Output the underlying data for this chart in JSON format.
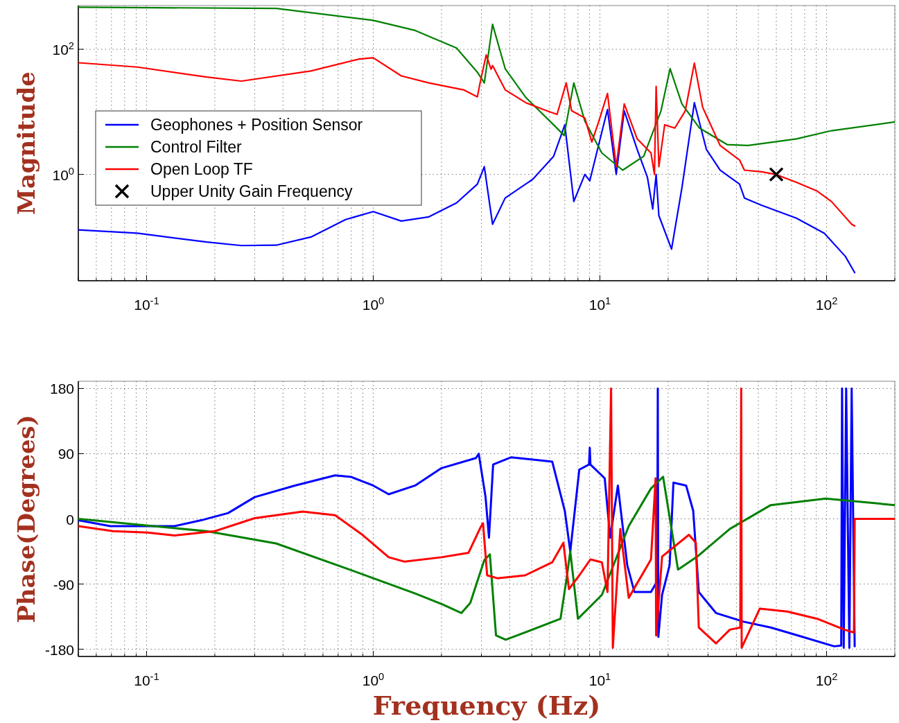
{
  "chart_data": [
    {
      "type": "line",
      "ylabel": "Magnitude",
      "log": "xy",
      "grid": true,
      "legend": "left",
      "line_style": "solid",
      "xlim": [
        0.05,
        200
      ],
      "ylim": [
        0.02,
        500
      ],
      "xticks": [
        {
          "value": 0.05,
          "label": null
        },
        {
          "value": 0.06,
          "label": null
        },
        {
          "value": 0.07,
          "label": null
        },
        {
          "value": 0.08,
          "label": null
        },
        {
          "value": 0.09,
          "label": null
        },
        {
          "value": 0.1,
          "label": "10$^{-1}$"
        },
        {
          "value": 0.2,
          "label": null
        },
        {
          "value": 0.3,
          "label": null
        },
        {
          "value": 0.4,
          "label": null
        },
        {
          "value": 0.5,
          "label": null
        },
        {
          "value": 0.6,
          "label": null
        },
        {
          "value": 0.7,
          "label": null
        },
        {
          "value": 0.8,
          "label": null
        },
        {
          "value": 0.9,
          "label": null
        },
        {
          "value": 1,
          "label": "10$^{0}$"
        },
        {
          "value": 2,
          "label": null
        },
        {
          "value": 3,
          "label": null
        },
        {
          "value": 4,
          "label": null
        },
        {
          "value": 5,
          "label": null
        },
        {
          "value": 6,
          "label": null
        },
        {
          "value": 7,
          "label": null
        },
        {
          "value": 8,
          "label": null
        },
        {
          "value": 9,
          "label": null
        },
        {
          "value": 10,
          "label": "10$^{1}$"
        },
        {
          "value": 20,
          "label": null
        },
        {
          "value": 30,
          "label": null
        },
        {
          "value": 40,
          "label": null
        },
        {
          "value": 50,
          "label": null
        },
        {
          "value": 60,
          "label": null
        },
        {
          "value": 70,
          "label": null
        },
        {
          "value": 80,
          "label": null
        },
        {
          "value": 90,
          "label": null
        },
        {
          "value": 100,
          "label": "10$^{2}$"
        },
        {
          "value": 200,
          "label": null
        }
      ],
      "yticks": [
        {
          "value": 1,
          "label": "10$^{0}$"
        },
        {
          "value": 100,
          "label": "10$^{2}$"
        }
      ],
      "series": [
        {
          "name": "Geophones + Position Sensor",
          "color": "#0000ff",
          "x": [
            0.05,
            0.091,
            0.184,
            0.262,
            0.373,
            0.531,
            0.755,
            1.0,
            1.33,
            1.76,
            2.33,
            2.88,
            3.09,
            3.36,
            3.82,
            5.06,
            6.25,
            7.0,
            7.67,
            8.58,
            9.02,
            10.2,
            10.8,
            11.8,
            12.8,
            14.6,
            16.2,
            17.1,
            17.7,
            18.2,
            20.7,
            23.0,
            26.1,
            29.5,
            33.9,
            41.3,
            43.4,
            51.8,
            73.6,
            97.7,
            121,
            133
          ],
          "values": [
            0.13,
            0.115,
            0.083,
            0.073,
            0.074,
            0.1,
            0.19,
            0.255,
            0.18,
            0.21,
            0.35,
            0.7,
            1.33,
            0.16,
            0.42,
            0.84,
            1.95,
            6.2,
            0.37,
            1.0,
            0.79,
            4.8,
            10.9,
            1.0,
            10.4,
            2.5,
            0.9,
            0.28,
            1.0,
            0.22,
            0.064,
            0.61,
            14,
            2.5,
            1.17,
            0.7,
            0.42,
            0.32,
            0.2,
            0.115,
            0.049,
            0.027
          ]
        },
        {
          "name": "Control Filter",
          "color": "#008000",
          "x": [
            0.05,
            0.373,
            1.0,
            1.53,
            2.33,
            2.88,
            3.09,
            3.36,
            3.82,
            4.71,
            6.25,
            6.95,
            7.67,
            8.58,
            10.2,
            12.6,
            15.6,
            18.6,
            20.4,
            23.0,
            27.5,
            36.4,
            45,
            73.6,
            105,
            200
          ],
          "values": [
            470,
            450,
            290,
            200,
            105,
            43,
            29,
            250,
            49,
            17,
            6.2,
            4.2,
            29,
            7.1,
            2.2,
            1.17,
            1.95,
            10.4,
            49,
            13.4,
            5.5,
            3.0,
            2.9,
            3.7,
            5.0,
            6.9
          ]
        },
        {
          "name": "Open Loop TF",
          "color": "#ff0000",
          "x": [
            0.05,
            0.091,
            0.184,
            0.262,
            0.531,
            0.869,
            1.0,
            1.33,
            1.76,
            2.5,
            2.88,
            2.96,
            3.15,
            3.31,
            3.36,
            3.82,
            4.71,
            5.82,
            6.47,
            7.1,
            7.5,
            8.58,
            9.21,
            9.88,
            10.8,
            11.8,
            12.8,
            14.6,
            16.8,
            17.4,
            17.7,
            18.2,
            19.3,
            21.4,
            23.8,
            26.1,
            28.4,
            33.9,
            41.3,
            43.4,
            51.8,
            59.6,
            73.6,
            91,
            105,
            129,
            133
          ],
          "values": [
            61,
            52,
            36,
            31,
            45,
            70,
            73,
            37.5,
            29,
            22.5,
            17.4,
            29,
            81,
            48,
            55,
            22.5,
            14,
            10.4,
            9.1,
            29,
            10.4,
            8,
            3.3,
            7,
            19.7,
            1.33,
            13.4,
            3.7,
            2.2,
            1.0,
            25.5,
            1.33,
            6.2,
            5.5,
            10.4,
            60,
            11.8,
            2.9,
            1.7,
            1.17,
            1.1,
            1.0,
            0.75,
            0.54,
            0.37,
            0.16,
            0.15
          ]
        },
        {
          "name": "Upper Unity Gain Frequency",
          "type": "scatter",
          "marker": "cross",
          "color": "#000000",
          "x": [
            60
          ],
          "values": [
            1
          ]
        }
      ]
    },
    {
      "type": "line",
      "ylabel": "Phase(Degrees)",
      "xlabel": "Frequency (Hz)",
      "log": "x",
      "grid": true,
      "line_style": "solid",
      "xlim": [
        0.05,
        200
      ],
      "ylim": [
        -190,
        190
      ],
      "xticks": [
        {
          "value": 0.05,
          "label": null
        },
        {
          "value": 0.06,
          "label": null
        },
        {
          "value": 0.07,
          "label": null
        },
        {
          "value": 0.08,
          "label": null
        },
        {
          "value": 0.09,
          "label": null
        },
        {
          "value": 0.1,
          "label": "10$^{-1}$"
        },
        {
          "value": 0.2,
          "label": null
        },
        {
          "value": 0.3,
          "label": null
        },
        {
          "value": 0.4,
          "label": null
        },
        {
          "value": 0.5,
          "label": null
        },
        {
          "value": 0.6,
          "label": null
        },
        {
          "value": 0.7,
          "label": null
        },
        {
          "value": 0.8,
          "label": null
        },
        {
          "value": 0.9,
          "label": null
        },
        {
          "value": 1,
          "label": "10$^{0}$"
        },
        {
          "value": 2,
          "label": null
        },
        {
          "value": 3,
          "label": null
        },
        {
          "value": 4,
          "label": null
        },
        {
          "value": 5,
          "label": null
        },
        {
          "value": 6,
          "label": null
        },
        {
          "value": 7,
          "label": null
        },
        {
          "value": 8,
          "label": null
        },
        {
          "value": 9,
          "label": null
        },
        {
          "value": 10,
          "label": "10$^{1}$"
        },
        {
          "value": 20,
          "label": null
        },
        {
          "value": 30,
          "label": null
        },
        {
          "value": 40,
          "label": null
        },
        {
          "value": 50,
          "label": null
        },
        {
          "value": 60,
          "label": null
        },
        {
          "value": 70,
          "label": null
        },
        {
          "value": 80,
          "label": null
        },
        {
          "value": 90,
          "label": null
        },
        {
          "value": 100,
          "label": "10$^{2}$"
        },
        {
          "value": 200,
          "label": null
        }
      ],
      "yticks": [
        -180,
        -90,
        0,
        90,
        180
      ],
      "series": [
        {
          "color": "#0000ff",
          "x": [
            0.05,
            0.0692,
            0.133,
            0.174,
            0.229,
            0.3,
            0.451,
            0.679,
            0.798,
            1.0,
            1.17,
            1.53,
            2.0,
            2.84,
            2.92,
            3.13,
            3.24,
            3.38,
            4.06,
            6.16,
            7.0,
            7.4,
            8.11,
            8.95,
            9.02,
            9.08,
            10.5,
            11.1,
            12.0,
            13.2,
            14.2,
            16.8,
            17.9,
            18.0,
            18.1,
            18.8,
            20.3,
            21.1,
            24.0,
            25.8,
            27.3,
            32.5,
            43.1,
            56.7,
            74.7,
            108,
            116,
            117,
            119,
            122,
            126,
            129,
            133
          ],
          "values": [
            -2,
            -10,
            -10,
            -2,
            8,
            30,
            46,
            60,
            58,
            46,
            34,
            46,
            70,
            84,
            90,
            30,
            -26,
            75,
            85,
            79,
            11,
            -45,
            68,
            75,
            98,
            75,
            56,
            -26,
            46,
            -64,
            -101,
            -101,
            -86,
            180,
            -163,
            -105,
            -64,
            50,
            46,
            11,
            -101,
            -130,
            -142,
            -150,
            -161,
            -176,
            -175,
            180,
            -178,
            180,
            -178,
            180,
            -176
          ]
        },
        {
          "color": "#008000",
          "x": [
            0.05,
            0.091,
            0.184,
            0.373,
            0.755,
            1.0,
            1.53,
            2.02,
            2.45,
            2.68,
            3.09,
            3.27,
            3.48,
            3.84,
            6.7,
            7.1,
            7.4,
            8.0,
            10.2,
            13.4,
            16.8,
            19.0,
            20.6,
            22.1,
            26.9,
            37.4,
            56.7,
            99,
            200
          ],
          "values": [
            0,
            -8,
            -17,
            -34,
            -68,
            -82,
            -103,
            -118,
            -130,
            -116,
            -57,
            -49,
            -161,
            -167,
            -138,
            -86,
            -45,
            -138,
            -105,
            -10,
            42,
            58,
            -10,
            -70,
            -52,
            -14,
            19,
            28,
            19
          ]
        },
        {
          "color": "#ff0000",
          "x": [
            0.05,
            0.0711,
            0.101,
            0.133,
            0.2,
            0.3,
            0.488,
            0.679,
            0.887,
            1.17,
            1.37,
            2.0,
            2.63,
            2.96,
            3.05,
            3.18,
            3.53,
            4.68,
            6.16,
            6.9,
            7.3,
            8.11,
            9.08,
            10.2,
            10.8,
            11.2,
            11.4,
            12.3,
            13.4,
            16.8,
            17.6,
            17.7,
            18.8,
            24.7,
            26.5,
            27.3,
            32.5,
            37.4,
            41.6,
            42.0,
            42.2,
            50.7,
            67.2,
            91,
            120,
            132,
            133,
            200
          ],
          "values": [
            -10,
            -17,
            -19,
            -23,
            -17,
            1,
            10,
            5,
            -21,
            -53,
            -59,
            -53,
            -47,
            -13,
            -6,
            -78,
            -82,
            -78,
            -60,
            -33,
            -97,
            -78,
            -56,
            -60,
            -101,
            180,
            -178,
            -14,
            -109,
            -56,
            56,
            -161,
            -52,
            -22,
            -33,
            -150,
            -172,
            -153,
            -150,
            180,
            -178,
            -124,
            -128,
            -138,
            -153,
            -157,
            0,
            0
          ]
        }
      ]
    }
  ]
}
